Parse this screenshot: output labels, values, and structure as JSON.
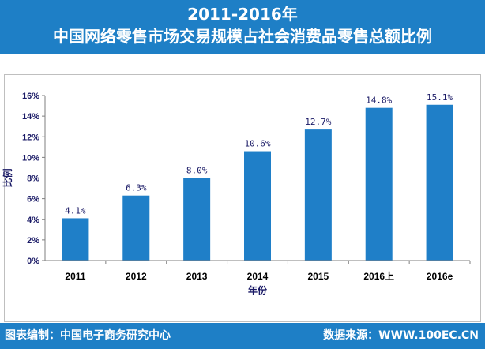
{
  "header": {
    "title_line_1": "2011-2016年",
    "title_line_2": "中国网络零售市场交易规模占社会消费品零售总额比例"
  },
  "footer": {
    "left_text": "图表编制：中国电子商务研究中心",
    "right_text": "数据来源：WWW.100EC.CN"
  },
  "colors": {
    "header_bg": "#1e7fc6",
    "bar": "#1f7fc8",
    "axis_text": "#1a1a66"
  },
  "chart_data": {
    "type": "bar",
    "categories": [
      "2011",
      "2012",
      "2013",
      "2014",
      "2015",
      "2016上",
      "2016e"
    ],
    "values": [
      4.1,
      6.3,
      8.0,
      10.6,
      12.7,
      14.8,
      15.1
    ],
    "data_labels": [
      "4.1%",
      "6.3%",
      "8.0%",
      "10.6%",
      "12.7%",
      "14.8%",
      "15.1%"
    ],
    "xlabel": "年份",
    "ylabel": "比例",
    "ylim": [
      0,
      16
    ],
    "yticks": [
      0,
      2,
      4,
      6,
      8,
      10,
      12,
      14,
      16
    ],
    "ytick_labels": [
      "0%",
      "2%",
      "4%",
      "6%",
      "8%",
      "10%",
      "12%",
      "14%",
      "16%"
    ],
    "grid": false,
    "legend": "none"
  }
}
